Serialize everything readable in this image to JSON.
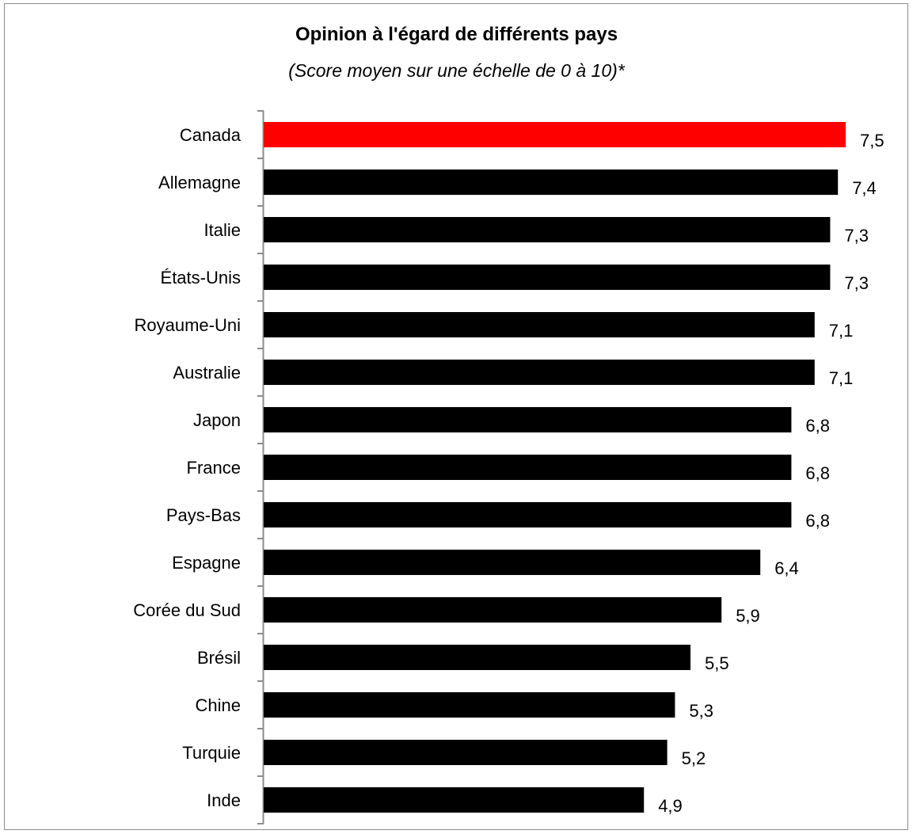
{
  "chart_data": {
    "type": "bar",
    "orientation": "horizontal",
    "title": "Opinion à l'égard de différents pays",
    "subtitle": "(Score moyen sur une échelle de 0 à 10)*",
    "categories": [
      "Canada",
      "Allemagne",
      "Italie",
      "États-Unis",
      "Royaume-Uni",
      "Australie",
      "Japon",
      "France",
      "Pays-Bas",
      "Espagne",
      "Corée du Sud",
      "Brésil",
      "Chine",
      "Turquie",
      "Inde"
    ],
    "values": [
      7.5,
      7.4,
      7.3,
      7.3,
      7.1,
      7.1,
      6.8,
      6.8,
      6.8,
      6.4,
      5.9,
      5.5,
      5.3,
      5.2,
      4.9
    ],
    "value_labels": [
      "7,5",
      "7,4",
      "7,3",
      "7,3",
      "7,1",
      "7,1",
      "6,8",
      "6,8",
      "6,8",
      "6,4",
      "5,9",
      "5,5",
      "5,3",
      "5,2",
      "4,9"
    ],
    "highlight_index": 0,
    "colors": {
      "highlight": "#ff0000",
      "bar": "#000000",
      "axis": "#8c8c8c"
    },
    "xlim": [
      0,
      7.5
    ],
    "grid": false,
    "legend": "none"
  }
}
